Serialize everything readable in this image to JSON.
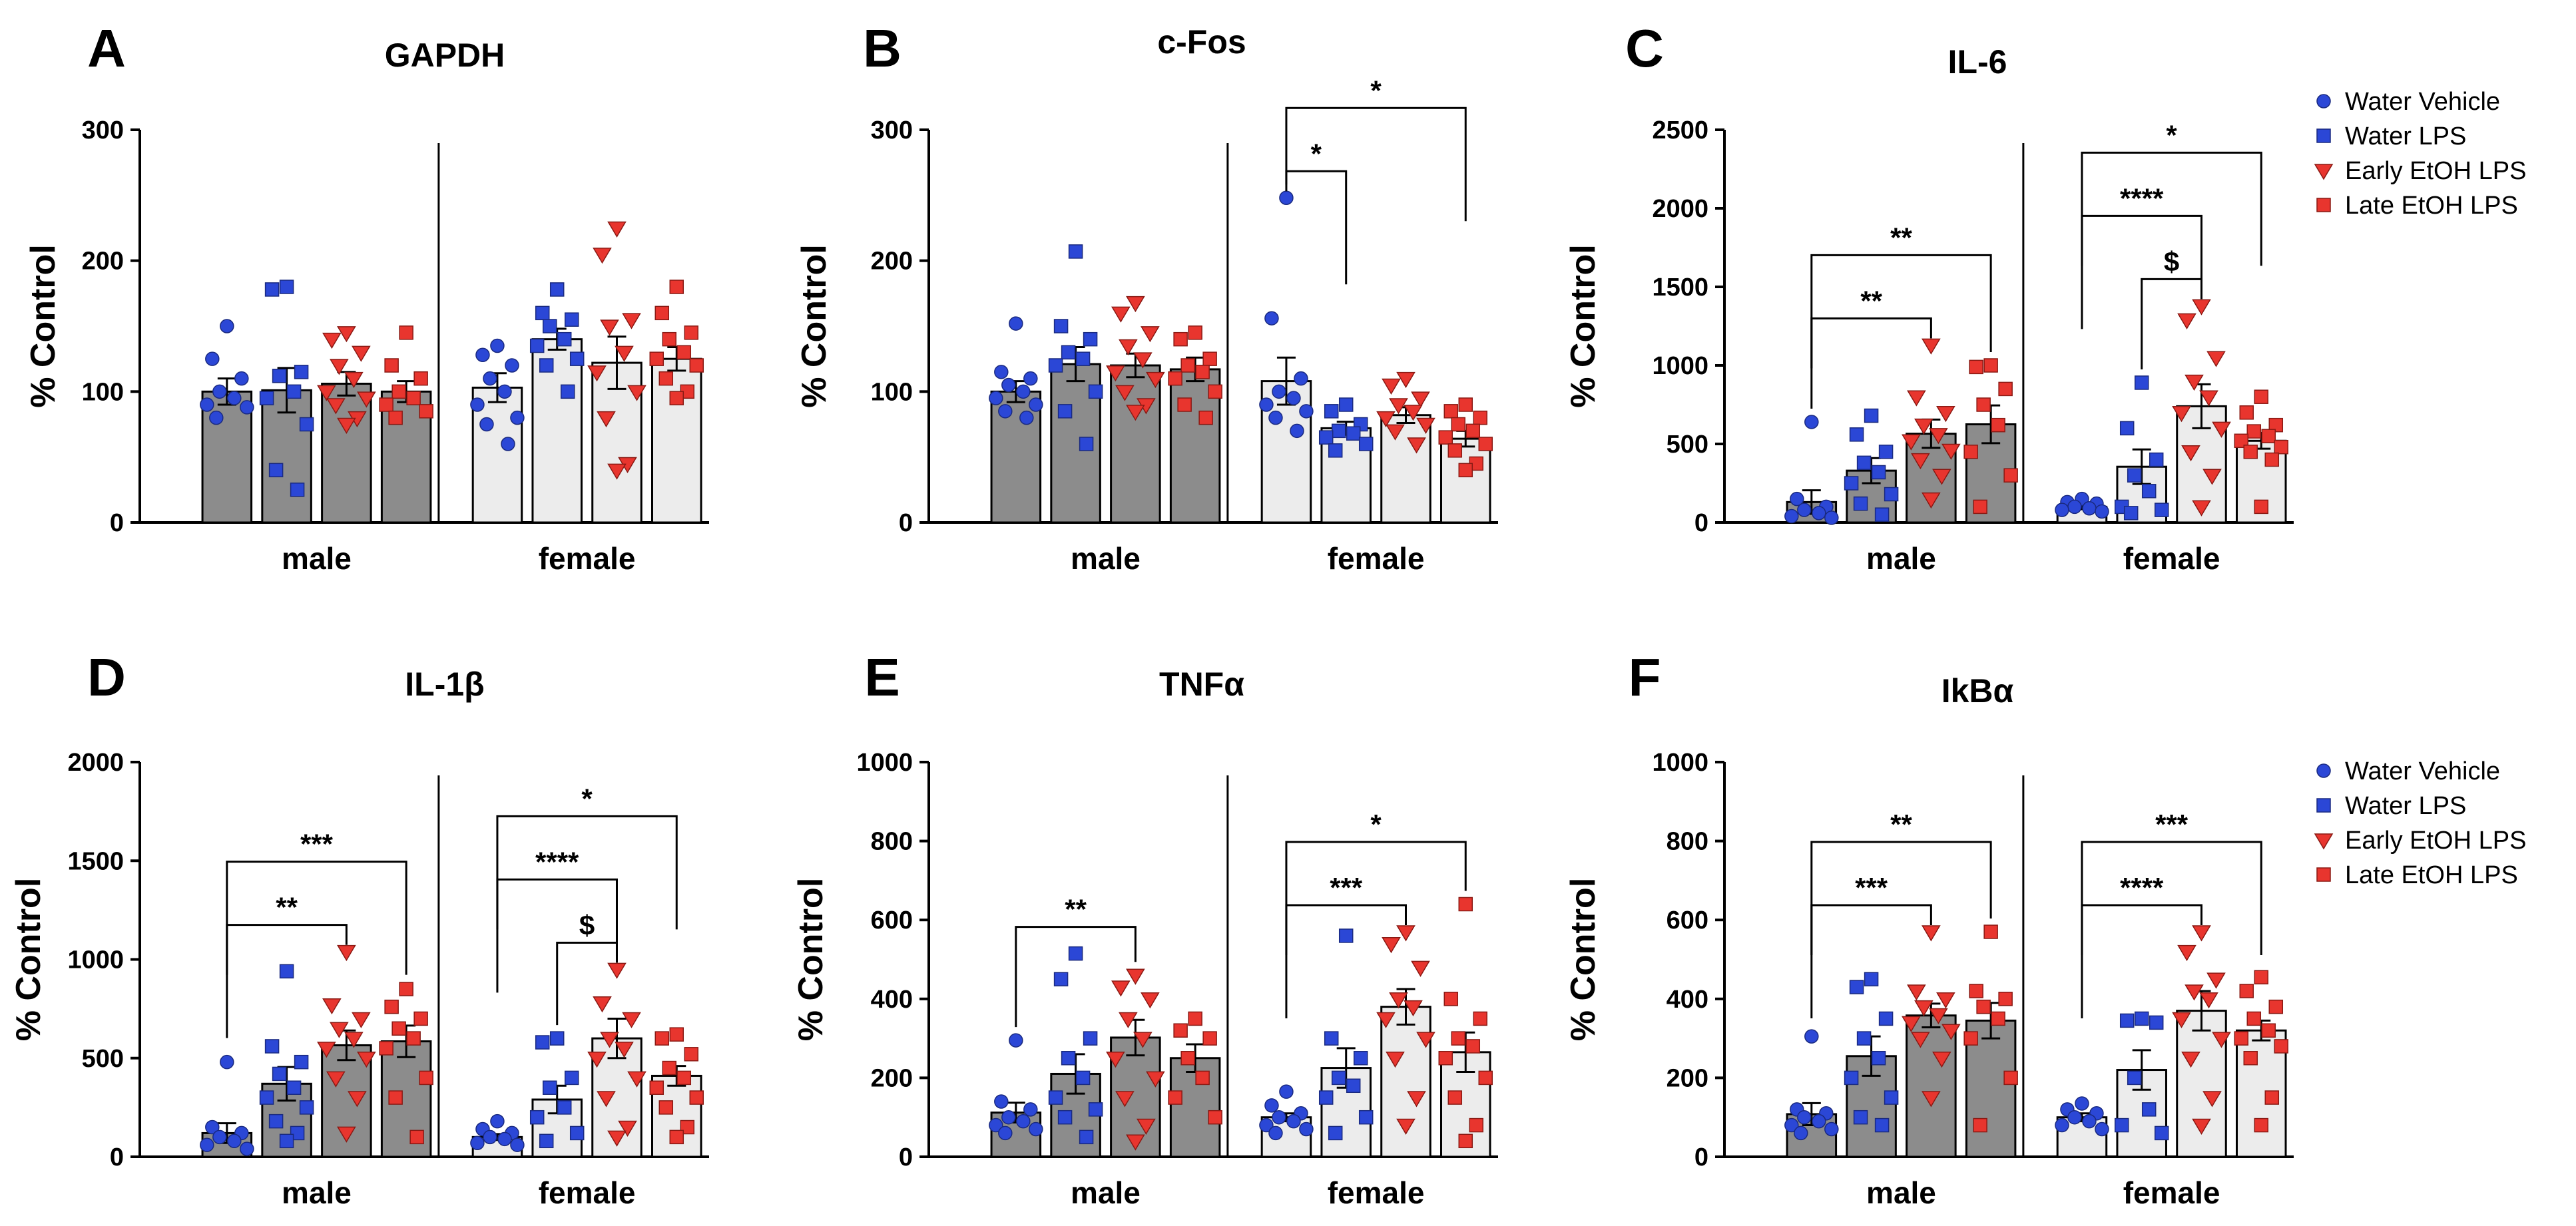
{
  "legend": [
    {
      "label": "Water Vehicle",
      "marker": "circle",
      "color": "#2b47d6"
    },
    {
      "label": "Water LPS",
      "marker": "square",
      "color": "#2b47d6"
    },
    {
      "label": "Early EtOH LPS",
      "marker": "triangle-down",
      "color": "#e8352e"
    },
    {
      "label": "Late EtOH LPS",
      "marker": "square",
      "color": "#e8352e"
    }
  ],
  "colors": {
    "male_bar": "#8c8c8c",
    "female_bar": "#ececec",
    "blue": "#2b47d6",
    "red": "#e8352e"
  },
  "common": {
    "ylabel": "% Control",
    "groups": [
      "male",
      "female"
    ]
  },
  "chart_data": [
    {
      "type": "bar",
      "letter": "A",
      "title": "GAPDH",
      "ylim": [
        0,
        300
      ],
      "yticks": [
        "0",
        "100",
        "200",
        "300"
      ],
      "series": [
        {
          "name": "Water Vehicle",
          "male": 100,
          "female": 103,
          "male_sem": 10,
          "female_sem": 11
        },
        {
          "name": "Water LPS",
          "male": 101,
          "female": 140,
          "male_sem": 17,
          "female_sem": 8
        },
        {
          "name": "Early EtOH LPS",
          "male": 106,
          "female": 122,
          "male_sem": 9,
          "female_sem": 20
        },
        {
          "name": "Late EtOH LPS",
          "male": 100,
          "female": 125,
          "male_sem": 8,
          "female_sem": 9
        }
      ],
      "points": {
        "male": [
          [
            150,
            125,
            110,
            100,
            95,
            90,
            88,
            80
          ],
          [
            180,
            178,
            115,
            112,
            100,
            95,
            75,
            40,
            25
          ],
          [
            145,
            140,
            130,
            120,
            110,
            100,
            95,
            90,
            80,
            75
          ],
          [
            145,
            120,
            110,
            100,
            95,
            90,
            85,
            80
          ]
        ],
        "female": [
          [
            135,
            128,
            120,
            110,
            100,
            90,
            80,
            75,
            60
          ],
          [
            178,
            160,
            155,
            150,
            140,
            135,
            125,
            120,
            100
          ],
          [
            225,
            205,
            155,
            150,
            130,
            115,
            100,
            80,
            45,
            40
          ],
          [
            180,
            160,
            145,
            140,
            130,
            125,
            120,
            110,
            100,
            95
          ]
        ]
      },
      "comparisons": []
    },
    {
      "type": "bar",
      "letter": "B",
      "title": "c-Fos",
      "ylim": [
        0,
        300
      ],
      "yticks": [
        "0",
        "100",
        "200",
        "300"
      ],
      "series": [
        {
          "name": "Water Vehicle",
          "male": 100,
          "female": 108,
          "male_sem": 8,
          "female_sem": 18
        },
        {
          "name": "Water LPS",
          "male": 121,
          "female": 72,
          "male_sem": 13,
          "female_sem": 5
        },
        {
          "name": "Early EtOH LPS",
          "male": 120,
          "female": 82,
          "male_sem": 9,
          "female_sem": 6
        },
        {
          "name": "Late EtOH LPS",
          "male": 117,
          "female": 64,
          "male_sem": 9,
          "female_sem": 6
        }
      ],
      "points": {
        "male": [
          [
            152,
            115,
            110,
            105,
            100,
            95,
            90,
            85,
            80
          ],
          [
            207,
            150,
            140,
            130,
            125,
            120,
            100,
            85,
            60
          ],
          [
            168,
            160,
            145,
            135,
            125,
            115,
            110,
            100,
            90,
            85
          ],
          [
            145,
            140,
            125,
            120,
            115,
            110,
            100,
            90,
            80
          ]
        ],
        "female": [
          [
            248,
            156,
            110,
            100,
            95,
            90,
            85,
            80,
            70
          ],
          [
            90,
            85,
            75,
            70,
            68,
            65,
            60,
            55
          ],
          [
            110,
            105,
            95,
            90,
            85,
            80,
            75,
            70,
            60
          ],
          [
            90,
            85,
            80,
            75,
            70,
            65,
            60,
            55,
            45,
            40
          ]
        ]
      },
      "comparisons": [
        {
          "group": "female",
          "from": 0,
          "to": 1,
          "label": "*"
        },
        {
          "group": "female",
          "from": 0,
          "to": 3,
          "label": "*"
        }
      ]
    },
    {
      "type": "bar",
      "letter": "C",
      "title": "IL-6",
      "ylim": [
        0,
        2500
      ],
      "yticks": [
        "0",
        "500",
        "1000",
        "1500",
        "2000",
        "2500"
      ],
      "series": [
        {
          "name": "Water Vehicle",
          "male": 130,
          "female": 100,
          "male_sem": 75,
          "female_sem": 15
        },
        {
          "name": "Water LPS",
          "male": 330,
          "female": 355,
          "male_sem": 80,
          "female_sem": 110
        },
        {
          "name": "Early EtOH LPS",
          "male": 565,
          "female": 740,
          "male_sem": 90,
          "female_sem": 140
        },
        {
          "name": "Late EtOH LPS",
          "male": 625,
          "female": 520,
          "male_sem": 120,
          "female_sem": 50
        }
      ],
      "points": {
        "male": [
          [
            640,
            150,
            100,
            80,
            60,
            40,
            30
          ],
          [
            680,
            560,
            450,
            380,
            320,
            250,
            180,
            120,
            50
          ],
          [
            1130,
            800,
            700,
            620,
            560,
            520,
            460,
            400,
            300,
            150
          ],
          [
            1000,
            990,
            850,
            750,
            620,
            450,
            300,
            100
          ]
        ],
        "female": [
          [
            150,
            130,
            120,
            100,
            90,
            80,
            70
          ],
          [
            890,
            600,
            400,
            300,
            200,
            100,
            80,
            60
          ],
          [
            1380,
            1290,
            1050,
            900,
            800,
            700,
            600,
            450,
            300,
            100
          ],
          [
            800,
            700,
            620,
            580,
            550,
            520,
            480,
            450,
            400,
            100
          ]
        ]
      },
      "comparisons": [
        {
          "group": "male",
          "from": 0,
          "to": 2,
          "label": "**"
        },
        {
          "group": "male",
          "from": 0,
          "to": 3,
          "label": "**"
        },
        {
          "group": "female",
          "from": 1,
          "to": 2,
          "label": "$"
        },
        {
          "group": "female",
          "from": 0,
          "to": 2,
          "label": "****"
        },
        {
          "group": "female",
          "from": 0,
          "to": 3,
          "label": "*"
        }
      ]
    },
    {
      "type": "bar",
      "letter": "D",
      "title": "IL-1β",
      "ylim": [
        0,
        2000
      ],
      "yticks": [
        "0",
        "500",
        "1000",
        "1500",
        "2000"
      ],
      "series": [
        {
          "name": "Water Vehicle",
          "male": 120,
          "female": 100,
          "male_sem": 50,
          "female_sem": 15
        },
        {
          "name": "Water LPS",
          "male": 370,
          "female": 290,
          "male_sem": 85,
          "female_sem": 70
        },
        {
          "name": "Early EtOH LPS",
          "male": 565,
          "female": 600,
          "male_sem": 75,
          "female_sem": 100
        },
        {
          "name": "Late EtOH LPS",
          "male": 585,
          "female": 410,
          "male_sem": 80,
          "female_sem": 50
        }
      ],
      "points": {
        "male": [
          [
            480,
            150,
            120,
            100,
            80,
            60,
            40
          ],
          [
            940,
            560,
            480,
            420,
            350,
            300,
            250,
            180,
            120,
            80
          ],
          [
            1040,
            770,
            700,
            650,
            600,
            550,
            500,
            400,
            300,
            120
          ],
          [
            850,
            760,
            700,
            650,
            600,
            550,
            400,
            300,
            100
          ]
        ],
        "female": [
          [
            180,
            140,
            120,
            100,
            90,
            70,
            60
          ],
          [
            600,
            580,
            400,
            350,
            250,
            200,
            120,
            80
          ],
          [
            950,
            780,
            700,
            600,
            550,
            500,
            400,
            300,
            150,
            100
          ],
          [
            620,
            600,
            520,
            450,
            400,
            350,
            300,
            250,
            150,
            100
          ]
        ]
      },
      "comparisons": [
        {
          "group": "male",
          "from": 0,
          "to": 2,
          "label": "**"
        },
        {
          "group": "male",
          "from": 0,
          "to": 3,
          "label": "***"
        },
        {
          "group": "female",
          "from": 1,
          "to": 2,
          "label": "$"
        },
        {
          "group": "female",
          "from": 0,
          "to": 2,
          "label": "****"
        },
        {
          "group": "female",
          "from": 0,
          "to": 3,
          "label": "*"
        }
      ]
    },
    {
      "type": "bar",
      "letter": "E",
      "title": "TNFα",
      "ylim": [
        0,
        1000
      ],
      "yticks": [
        "0",
        "200",
        "400",
        "600",
        "800",
        "1000"
      ],
      "series": [
        {
          "name": "Water Vehicle",
          "male": 112,
          "female": 100,
          "male_sem": 25,
          "female_sem": 10
        },
        {
          "name": "Water LPS",
          "male": 210,
          "female": 225,
          "male_sem": 50,
          "female_sem": 50
        },
        {
          "name": "Early EtOH LPS",
          "male": 302,
          "female": 380,
          "male_sem": 45,
          "female_sem": 45
        },
        {
          "name": "Late EtOH LPS",
          "male": 250,
          "female": 265,
          "male_sem": 35,
          "female_sem": 50
        }
      ],
      "points": {
        "male": [
          [
            295,
            140,
            120,
            100,
            90,
            80,
            70,
            60
          ],
          [
            515,
            450,
            300,
            250,
            200,
            150,
            120,
            100,
            50
          ],
          [
            460,
            430,
            400,
            350,
            300,
            250,
            200,
            150,
            80,
            40
          ],
          [
            350,
            320,
            300,
            250,
            200,
            150,
            100
          ]
        ],
        "female": [
          [
            165,
            130,
            110,
            100,
            90,
            80,
            70,
            60
          ],
          [
            560,
            300,
            250,
            200,
            180,
            150,
            100,
            60
          ],
          [
            570,
            540,
            480,
            400,
            380,
            350,
            300,
            250,
            150,
            80
          ],
          [
            640,
            400,
            350,
            300,
            280,
            250,
            200,
            150,
            80,
            40
          ]
        ]
      },
      "comparisons": [
        {
          "group": "male",
          "from": 0,
          "to": 2,
          "label": "**"
        },
        {
          "group": "female",
          "from": 0,
          "to": 2,
          "label": "***"
        },
        {
          "group": "female",
          "from": 0,
          "to": 3,
          "label": "*"
        }
      ]
    },
    {
      "type": "bar",
      "letter": "F",
      "title": "IkBα",
      "ylim": [
        0,
        1000
      ],
      "yticks": [
        "0",
        "200",
        "400",
        "600",
        "800",
        "1000"
      ],
      "series": [
        {
          "name": "Water Vehicle",
          "male": 108,
          "female": 100,
          "male_sem": 28,
          "female_sem": 10
        },
        {
          "name": "Water LPS",
          "male": 255,
          "female": 220,
          "male_sem": 50,
          "female_sem": 50
        },
        {
          "name": "Early EtOH LPS",
          "male": 358,
          "female": 370,
          "male_sem": 30,
          "female_sem": 50
        },
        {
          "name": "Late EtOH LPS",
          "male": 345,
          "female": 320,
          "male_sem": 45,
          "female_sem": 25
        }
      ],
      "points": {
        "male": [
          [
            305,
            120,
            110,
            100,
            90,
            80,
            70,
            60
          ],
          [
            450,
            430,
            350,
            300,
            250,
            200,
            150,
            100,
            80
          ],
          [
            570,
            420,
            400,
            380,
            360,
            340,
            320,
            300,
            250,
            150
          ],
          [
            570,
            420,
            400,
            380,
            350,
            300,
            200,
            80
          ]
        ],
        "female": [
          [
            135,
            120,
            110,
            100,
            90,
            80,
            70
          ],
          [
            350,
            345,
            340,
            200,
            120,
            80,
            60
          ],
          [
            570,
            520,
            450,
            420,
            400,
            350,
            300,
            250,
            150,
            80
          ],
          [
            455,
            420,
            380,
            350,
            320,
            300,
            280,
            250,
            150,
            80
          ]
        ]
      },
      "comparisons": [
        {
          "group": "male",
          "from": 0,
          "to": 2,
          "label": "***"
        },
        {
          "group": "male",
          "from": 0,
          "to": 3,
          "label": "**"
        },
        {
          "group": "female",
          "from": 0,
          "to": 2,
          "label": "****"
        },
        {
          "group": "female",
          "from": 0,
          "to": 3,
          "label": "***"
        }
      ]
    }
  ]
}
